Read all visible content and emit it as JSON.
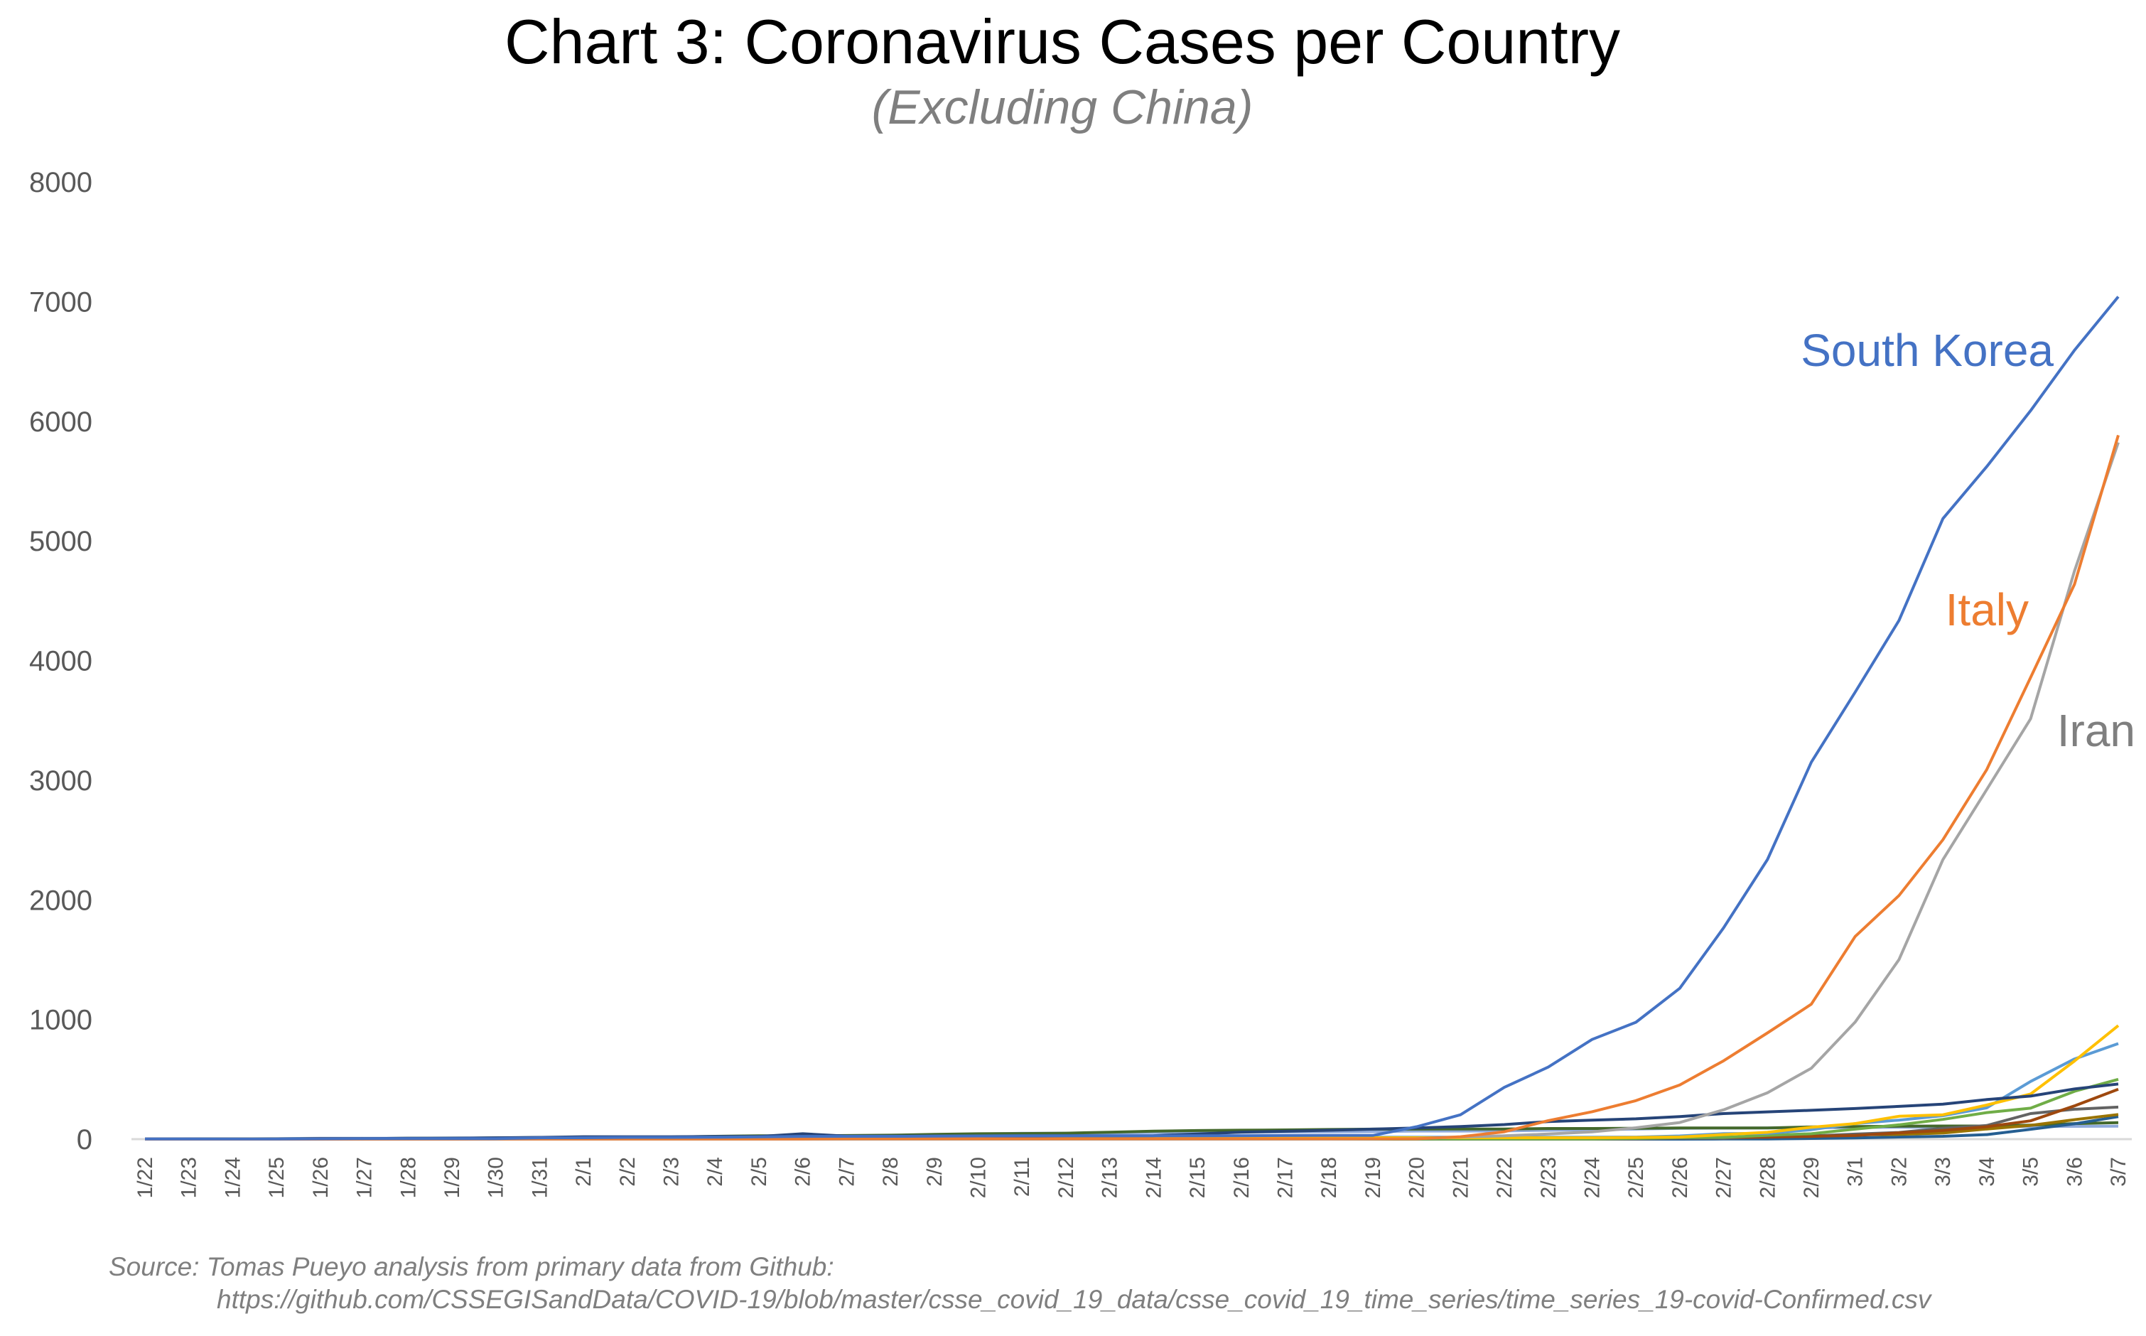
{
  "chart_data": {
    "type": "line",
    "title": "Chart 3: Coronavirus Cases per Country",
    "subtitle": "(Excluding China)",
    "xlabel": "",
    "ylabel": "",
    "ylim": [
      0,
      8000
    ],
    "yticks": [
      "0",
      "1000",
      "2000",
      "3000",
      "4000",
      "5000",
      "6000",
      "7000",
      "8000"
    ],
    "grid": false,
    "legend": "none",
    "x": [
      "1/22",
      "1/23",
      "1/24",
      "1/25",
      "1/26",
      "1/27",
      "1/28",
      "1/29",
      "1/30",
      "1/31",
      "2/1",
      "2/2",
      "2/3",
      "2/4",
      "2/5",
      "2/6",
      "2/7",
      "2/8",
      "2/9",
      "2/10",
      "2/11",
      "2/12",
      "2/13",
      "2/14",
      "2/15",
      "2/16",
      "2/17",
      "2/18",
      "2/19",
      "2/20",
      "2/21",
      "2/22",
      "2/23",
      "2/24",
      "2/25",
      "2/26",
      "2/27",
      "2/28",
      "2/29",
      "3/1",
      "3/2",
      "3/3",
      "3/4",
      "3/5",
      "3/6",
      "3/7"
    ],
    "series": [
      {
        "name": "South Korea",
        "color": "#4472C4",
        "values": [
          1,
          1,
          2,
          2,
          3,
          4,
          4,
          4,
          4,
          11,
          12,
          15,
          15,
          16,
          19,
          23,
          24,
          24,
          25,
          27,
          28,
          28,
          28,
          28,
          28,
          29,
          30,
          31,
          31,
          104,
          204,
          433,
          602,
          833,
          977,
          1261,
          1766,
          2337,
          3150,
          3736,
          4335,
          5186,
          5621,
          6088,
          6593,
          7041
        ]
      },
      {
        "name": "Italy",
        "color": "#ED7D31",
        "values": [
          0,
          0,
          0,
          0,
          0,
          0,
          0,
          0,
          2,
          2,
          2,
          2,
          2,
          2,
          2,
          2,
          3,
          3,
          3,
          3,
          3,
          3,
          3,
          3,
          3,
          3,
          3,
          3,
          3,
          3,
          20,
          62,
          155,
          229,
          322,
          453,
          655,
          888,
          1128,
          1694,
          2036,
          2502,
          3089,
          3858,
          4636,
          5883
        ]
      },
      {
        "name": "Iran",
        "color": "#A5A5A5",
        "values": [
          0,
          0,
          0,
          0,
          0,
          0,
          0,
          0,
          0,
          0,
          0,
          0,
          0,
          0,
          0,
          0,
          0,
          0,
          0,
          0,
          0,
          0,
          0,
          0,
          0,
          0,
          0,
          0,
          2,
          5,
          18,
          28,
          43,
          61,
          95,
          139,
          245,
          388,
          593,
          978,
          1501,
          2336,
          2922,
          3513,
          4747,
          5823
        ]
      },
      {
        "color": "#264478",
        "values": [
          2,
          1,
          2,
          2,
          4,
          4,
          7,
          7,
          11,
          15,
          20,
          20,
          20,
          22,
          22,
          45,
          25,
          25,
          26,
          26,
          26,
          28,
          28,
          29,
          43,
          59,
          66,
          74,
          84,
          94,
          105,
          122,
          147,
          159,
          170,
          189,
          214,
          228,
          241,
          256,
          274,
          293,
          331,
          360,
          420,
          461
        ]
      },
      {
        "color": "#FFC000",
        "values": [
          0,
          0,
          2,
          3,
          3,
          3,
          4,
          5,
          5,
          5,
          6,
          6,
          6,
          6,
          6,
          6,
          6,
          11,
          11,
          11,
          11,
          11,
          11,
          11,
          12,
          12,
          12,
          12,
          12,
          12,
          12,
          12,
          12,
          12,
          14,
          18,
          38,
          57,
          100,
          130,
          191,
          204,
          285,
          377,
          653,
          949
        ]
      },
      {
        "color": "#5B9BD5",
        "values": [
          0,
          0,
          0,
          0,
          0,
          1,
          4,
          4,
          4,
          5,
          8,
          10,
          12,
          12,
          12,
          12,
          13,
          13,
          14,
          14,
          16,
          16,
          16,
          16,
          16,
          16,
          16,
          16,
          16,
          16,
          16,
          16,
          16,
          16,
          17,
          27,
          46,
          48,
          79,
          130,
          159,
          196,
          262,
          482,
          670,
          799
        ]
      },
      {
        "color": "#70AD47",
        "values": [
          0,
          0,
          0,
          0,
          0,
          0,
          0,
          0,
          0,
          0,
          1,
          1,
          1,
          1,
          1,
          1,
          1,
          1,
          2,
          2,
          2,
          2,
          2,
          2,
          2,
          2,
          2,
          2,
          2,
          2,
          2,
          2,
          2,
          2,
          6,
          13,
          15,
          32,
          45,
          84,
          120,
          165,
          222,
          259,
          400,
          500
        ]
      },
      {
        "color": "#9E480E",
        "values": [
          1,
          1,
          2,
          2,
          5,
          5,
          5,
          5,
          5,
          7,
          8,
          8,
          11,
          11,
          11,
          11,
          11,
          11,
          11,
          11,
          12,
          12,
          13,
          13,
          13,
          13,
          13,
          13,
          13,
          13,
          15,
          15,
          15,
          15,
          15,
          15,
          16,
          16,
          24,
          30,
          53,
          73,
          104,
          153,
          278,
          417
        ]
      },
      {
        "color": "#636363",
        "values": [
          0,
          0,
          0,
          0,
          0,
          0,
          0,
          0,
          0,
          0,
          0,
          0,
          0,
          0,
          0,
          0,
          0,
          0,
          0,
          0,
          0,
          0,
          0,
          0,
          0,
          0,
          0,
          0,
          0,
          0,
          0,
          0,
          0,
          0,
          1,
          8,
          8,
          18,
          27,
          42,
          56,
          90,
          114,
          214,
          250,
          268
        ]
      },
      {
        "color": "#997300",
        "values": [
          0,
          0,
          0,
          0,
          0,
          0,
          0,
          0,
          0,
          2,
          2,
          2,
          2,
          2,
          2,
          2,
          3,
          3,
          3,
          8,
          8,
          9,
          9,
          9,
          9,
          9,
          9,
          9,
          9,
          9,
          9,
          9,
          9,
          13,
          13,
          13,
          15,
          20,
          23,
          36,
          40,
          51,
          85,
          115,
          163,
          206
        ]
      },
      {
        "color": "#255E91",
        "values": [
          0,
          0,
          0,
          0,
          0,
          0,
          0,
          0,
          0,
          0,
          0,
          0,
          0,
          0,
          0,
          0,
          0,
          0,
          0,
          0,
          0,
          0,
          0,
          0,
          0,
          0,
          0,
          0,
          0,
          0,
          0,
          0,
          0,
          0,
          0,
          0,
          1,
          1,
          6,
          10,
          18,
          24,
          38,
          82,
          128,
          188
        ]
      },
      {
        "color": "#43682B",
        "values": [
          0,
          1,
          3,
          3,
          4,
          5,
          7,
          7,
          10,
          13,
          16,
          18,
          18,
          24,
          28,
          28,
          30,
          33,
          40,
          45,
          47,
          50,
          58,
          67,
          72,
          75,
          77,
          81,
          84,
          84,
          85,
          85,
          89,
          89,
          91,
          93,
          93,
          93,
          102,
          106,
          108,
          110,
          110,
          117,
          130,
          138
        ]
      },
      {
        "color": "#8FAADC",
        "values": [
          0,
          2,
          2,
          5,
          8,
          8,
          8,
          10,
          10,
          12,
          13,
          15,
          15,
          18,
          21,
          24,
          26,
          26,
          36,
          42,
          49,
          50,
          53,
          56,
          56,
          57,
          60,
          62,
          63,
          68,
          68,
          69,
          74,
          79,
          84,
          91,
          92,
          94,
          95,
          96,
          100,
          100,
          105,
          105,
          107,
          108
        ]
      }
    ],
    "annotations": [
      {
        "text": "South Korea",
        "color": "#4472C4"
      },
      {
        "text": "Italy",
        "color": "#ED7D31"
      },
      {
        "text": "Iran",
        "color": "#7F7F7F"
      }
    ]
  },
  "source": {
    "line1": "Source: Tomas Pueyo analysis from primary data from Github:",
    "line2": "https://github.com/CSSEGISandData/COVID-19/blob/master/csse_covid_19_data/csse_covid_19_time_series/time_series_19-covid-Confirmed.csv"
  }
}
